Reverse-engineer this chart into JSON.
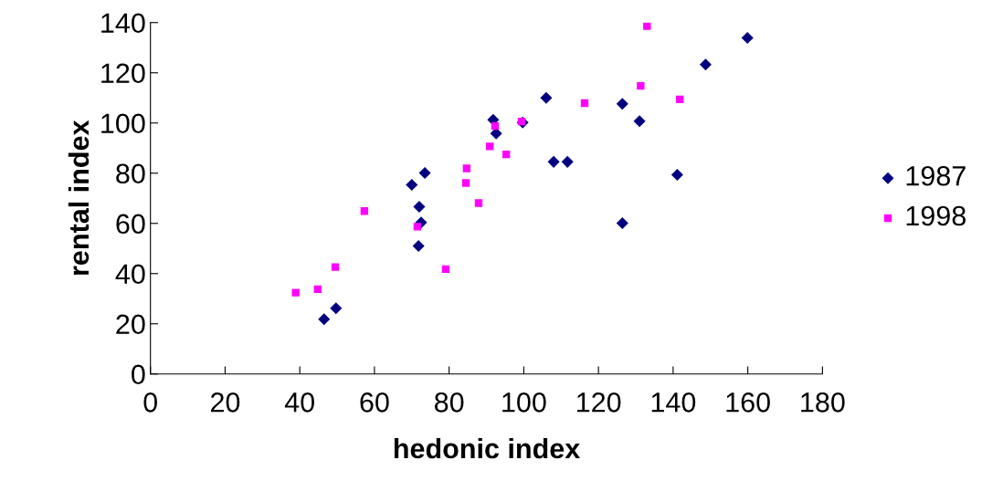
{
  "chart_data": {
    "type": "scatter",
    "xlabel": "hedonic index",
    "ylabel": "rental index",
    "xlim": [
      0,
      180
    ],
    "xticks": [
      0,
      20,
      40,
      60,
      80,
      100,
      120,
      140,
      160,
      180
    ],
    "ylim": [
      0,
      140
    ],
    "yticks": [
      0,
      20,
      40,
      60,
      80,
      100,
      120,
      140
    ],
    "grid": false,
    "legend": "right",
    "series": [
      {
        "name": "1987",
        "color": "#000080",
        "marker": "diamond",
        "x": [
          46.5,
          49.7,
          70,
          73.5,
          72,
          72.5,
          71.8,
          91.8,
          92.6,
          99.7,
          106,
          108,
          111.7,
          126.4,
          126.4,
          131,
          141.1,
          148.7,
          159.9
        ],
        "values": [
          21.8,
          26.2,
          75.4,
          80.1,
          66.6,
          60.4,
          51,
          101.3,
          95.8,
          100.2,
          110,
          84.5,
          84.5,
          107.6,
          60.1,
          100.7,
          79.4,
          123.3,
          133.9
        ]
      },
      {
        "name": "1998",
        "color": "#ff00ff",
        "marker": "square",
        "x": [
          38.9,
          44.8,
          49.5,
          57.3,
          71.5,
          79.1,
          84.7,
          84.5,
          87.9,
          90.9,
          92.3,
          95.3,
          99.4,
          116.3,
          131.3,
          133,
          141.8
        ],
        "values": [
          32.4,
          33.8,
          42.6,
          64.9,
          58.7,
          41.8,
          81.9,
          76.1,
          68.1,
          90.7,
          98.8,
          87.5,
          100.6,
          107.9,
          114.8,
          138.6,
          109.4
        ]
      }
    ]
  }
}
